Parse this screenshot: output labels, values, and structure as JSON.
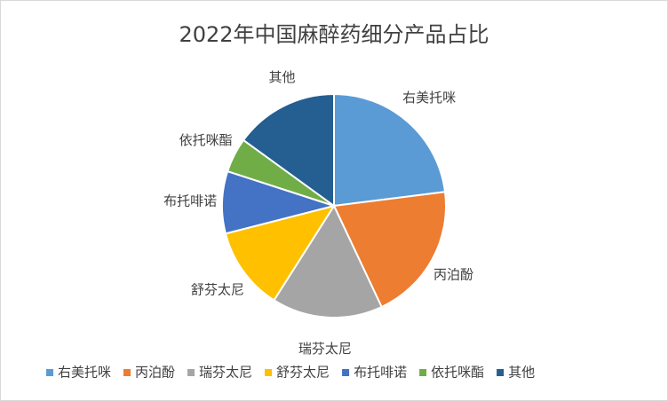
{
  "chart_data": {
    "type": "pie",
    "title": "2022年中国麻醉药细分产品占比",
    "categories": [
      "右美托咪",
      "丙泊酚",
      "瑞芬太尼",
      "舒芬太尼",
      "布托啡诺",
      "依托咪酯",
      "其他"
    ],
    "values": [
      23,
      20,
      16,
      12,
      9,
      5,
      15
    ],
    "colors": [
      "#5b9bd5",
      "#ed7d31",
      "#a5a5a5",
      "#ffc000",
      "#4472c4",
      "#70ad47",
      "#255e91"
    ],
    "legend": "bottom"
  }
}
